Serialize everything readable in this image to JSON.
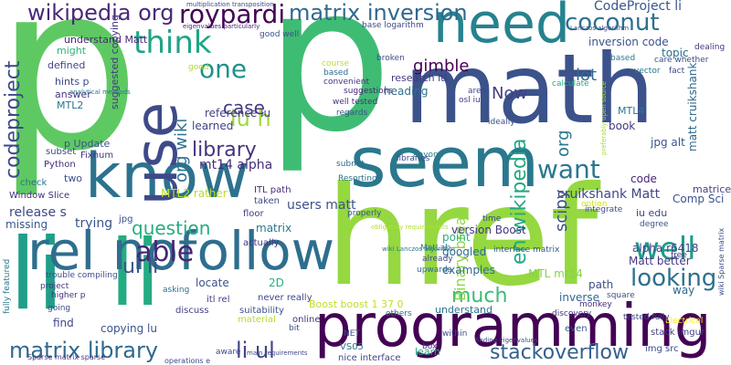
{
  "words": [
    {
      "text": "p",
      "color": "#5ec962"
    },
    {
      "text": "p",
      "color": "#3fbc73"
    },
    {
      "text": "math",
      "color": "#3b528b"
    },
    {
      "text": "href",
      "color": "#95d840"
    },
    {
      "text": "seem",
      "color": "#2a788e"
    },
    {
      "text": "know",
      "color": "#2c728e"
    },
    {
      "text": "need",
      "color": "#26828e"
    },
    {
      "text": "use",
      "color": "#3e4a89"
    },
    {
      "text": "programming",
      "color": "#440154"
    },
    {
      "text": "li",
      "color": "#1f9e89"
    },
    {
      "text": "li",
      "color": "#25ab82"
    },
    {
      "text": "rel nofollow",
      "color": "#2e6e8e"
    },
    {
      "text": "wikipedia org",
      "color": "#482878"
    },
    {
      "text": "roypardi",
      "color": "#440154"
    },
    {
      "text": "matrix inversion",
      "color": "#31688e"
    },
    {
      "text": "coconut",
      "color": "#2d718e"
    },
    {
      "text": "CodeProject li",
      "color": "#39568c"
    },
    {
      "text": "think",
      "color": "#20a486"
    },
    {
      "text": "one",
      "color": "#21918c"
    },
    {
      "text": "want",
      "color": "#2a788e"
    },
    {
      "text": "well",
      "color": "#1e9b8a"
    },
    {
      "text": "lu h",
      "color": "#a0da39"
    },
    {
      "text": "case",
      "color": "#443a83"
    },
    {
      "text": "org wiki",
      "color": "#2c728e"
    },
    {
      "text": "library",
      "color": "#46337e"
    },
    {
      "text": "gimble",
      "color": "#440154"
    },
    {
      "text": "Now",
      "color": "#433e85"
    },
    {
      "text": "en wikipedia",
      "color": "#22a884"
    },
    {
      "text": "org",
      "color": "#2a788e"
    },
    {
      "text": "codeproject",
      "color": "#3e4989"
    },
    {
      "text": "able",
      "color": "#482475"
    },
    {
      "text": "question",
      "color": "#26ad81"
    },
    {
      "text": "ul li",
      "color": "#3b528b"
    },
    {
      "text": "matrix library",
      "color": "#30698e"
    },
    {
      "text": "li ul",
      "color": "#414487"
    },
    {
      "text": "much",
      "color": "#3aba76"
    },
    {
      "text": "looking",
      "color": "#2d708e"
    },
    {
      "text": "stackoverflow",
      "color": "#355f8d"
    },
    {
      "text": "scipy",
      "color": "#3c4f8a"
    },
    {
      "text": "Binary break",
      "color": "#8fd744"
    },
    {
      "text": "lot",
      "color": "#31688e"
    },
    {
      "text": "mt14 alpha",
      "color": "#472c7a"
    },
    {
      "text": "reference lu",
      "color": "#423f85"
    },
    {
      "text": "learned",
      "color": "#414487"
    },
    {
      "text": "MTL2 rather",
      "color": "#b8de29"
    },
    {
      "text": "cruikshank Matt",
      "color": "#3f4788"
    },
    {
      "text": "users matt",
      "color": "#3b528b"
    },
    {
      "text": "version Boost",
      "color": "#453882"
    },
    {
      "text": "googled",
      "color": "#2f6c8e"
    },
    {
      "text": "examples",
      "color": "#2f6b8e"
    },
    {
      "text": "MTL mt14",
      "color": "#84d44b"
    },
    {
      "text": "point",
      "color": "#29af7f"
    },
    {
      "text": "Boost boost 1 37 0",
      "color": "#bddf26"
    },
    {
      "text": "trying",
      "color": "#3a548c"
    },
    {
      "text": "release s",
      "color": "#3e4989"
    },
    {
      "text": "missing",
      "color": "#38588c"
    },
    {
      "text": "matrix",
      "color": "#2a788e"
    },
    {
      "text": "2D",
      "color": "#2ab07f"
    },
    {
      "text": "locate",
      "color": "#3b528b"
    },
    {
      "text": "find",
      "color": "#404688"
    },
    {
      "text": "copying lu",
      "color": "#3a538b"
    },
    {
      "text": "inverse",
      "color": "#31678e"
    },
    {
      "text": "understand",
      "color": "#2c738e"
    },
    {
      "text": "path",
      "color": "#3e4c8a"
    },
    {
      "text": "way",
      "color": "#31688e"
    },
    {
      "text": "Matt better",
      "color": "#453781"
    },
    {
      "text": "alpha r6418",
      "color": "#3f4889"
    },
    {
      "text": "iu edu",
      "color": "#404588"
    },
    {
      "text": "Comp Sci",
      "color": "#3b528b"
    },
    {
      "text": "matrices",
      "color": "#424186"
    },
    {
      "text": "matt cruikshank",
      "color": "#31688e"
    },
    {
      "text": "jpg alt",
      "color": "#3a548c"
    },
    {
      "text": "MTL4",
      "color": "#2a778e"
    },
    {
      "text": "book",
      "color": "#453781"
    },
    {
      "text": "code",
      "color": "#482576"
    },
    {
      "text": "inversion code",
      "color": "#3a548c"
    },
    {
      "text": "topic",
      "color": "#2d708e"
    },
    {
      "text": "heading",
      "color": "#2d708e"
    },
    {
      "text": "research itl",
      "color": "#443983"
    },
    {
      "text": "understand Matt",
      "color": "#482878"
    },
    {
      "text": "hints p",
      "color": "#3e4989"
    },
    {
      "text": "answer",
      "color": "#453882"
    },
    {
      "text": "MTL2",
      "color": "#2c728e"
    },
    {
      "text": "might",
      "color": "#2fb47c"
    },
    {
      "text": "suggested copying",
      "color": "#453882"
    },
    {
      "text": "p Update",
      "color": "#3b518b"
    },
    {
      "text": "defined",
      "color": "#414487"
    },
    {
      "text": "two",
      "color": "#3d4e8a"
    },
    {
      "text": "Window Slice",
      "color": "#46307e"
    },
    {
      "text": "Fixnum",
      "color": "#46337e"
    },
    {
      "text": "subset",
      "color": "#3e4989"
    },
    {
      "text": "Python",
      "color": "#472d7b"
    },
    {
      "text": "check",
      "color": "#2b748e"
    },
    {
      "text": "jpg",
      "color": "#3d4d8a"
    },
    {
      "text": "floor",
      "color": "#443a83"
    },
    {
      "text": "taken",
      "color": "#3e4c8a"
    },
    {
      "text": "ITL path",
      "color": "#472c7a"
    },
    {
      "text": "actually",
      "color": "#46337e"
    },
    {
      "text": "never really",
      "color": "#3e4989"
    },
    {
      "text": "itl rel",
      "color": "#433d84"
    },
    {
      "text": "discuss",
      "color": "#423f85"
    },
    {
      "text": "material",
      "color": "#b5de2b"
    },
    {
      "text": "suitability",
      "color": "#3b528b"
    },
    {
      "text": "online",
      "color": "#46327e"
    },
    {
      "text": "nice interface",
      "color": "#3f4788"
    },
    {
      "text": "VS05",
      "color": "#2d708e"
    },
    {
      "text": "learn",
      "color": "#25ac82"
    },
    {
      "text": "img src",
      "color": "#3e4a89"
    },
    {
      "text": "stack imgur",
      "color": "#423f85"
    },
    {
      "text": "even",
      "color": "#38598c"
    },
    {
      "text": "Electrical",
      "color": "#fde725"
    },
    {
      "text": "upwards",
      "color": "#31688e"
    },
    {
      "text": "already",
      "color": "#3e4c8a"
    },
    {
      "text": "MatLab",
      "color": "#2a788e"
    },
    {
      "text": "properly",
      "color": "#3b528b"
    },
    {
      "text": "subnet",
      "color": "#31688e"
    },
    {
      "text": "Resorting",
      "color": "#2d708e"
    },
    {
      "text": "libraries",
      "color": "#3e4989"
    },
    {
      "text": "anyone",
      "color": "#2a788e"
    },
    {
      "text": "integrate",
      "color": "#3e4a89"
    },
    {
      "text": "interface matrix",
      "color": "#3a548c"
    },
    {
      "text": "suggestions",
      "color": "#482878"
    },
    {
      "text": "well tested",
      "color": "#46327e"
    },
    {
      "text": "regards",
      "color": "#3b528b"
    },
    {
      "text": "convenient",
      "color": "#46337e"
    },
    {
      "text": "based",
      "color": "#2f6b8e"
    },
    {
      "text": "course",
      "color": "#bddf26"
    },
    {
      "text": "broken",
      "color": "#3e4989"
    },
    {
      "text": "base logarithm",
      "color": "#3e4a89"
    },
    {
      "text": "calculate",
      "color": "#25ab82"
    },
    {
      "text": "fact",
      "color": "#3e4989"
    },
    {
      "text": "care whether",
      "color": "#3d4e8a"
    },
    {
      "text": "based",
      "color": "#2a788e"
    },
    {
      "text": "dealing",
      "color": "#46327e"
    },
    {
      "text": "ideally",
      "color": "#3b528b"
    },
    {
      "text": "osl iu",
      "color": "#414487"
    },
    {
      "text": "area",
      "color": "#3e4a89"
    },
    {
      "text": "vector",
      "color": "#2a788e"
    },
    {
      "text": "good",
      "color": "#a8db34"
    },
    {
      "text": "good well",
      "color": "#3b528b"
    },
    {
      "text": "time",
      "color": "#3e4989"
    },
    {
      "text": "degree",
      "color": "#3b528b"
    },
    {
      "text": "option",
      "color": "#cde11d"
    },
    {
      "text": "free",
      "color": "#46327e"
    },
    {
      "text": "square",
      "color": "#3e4c8a"
    },
    {
      "text": "tested fully",
      "color": "#404688"
    },
    {
      "text": "monkey",
      "color": "#472d7b"
    },
    {
      "text": "discovery",
      "color": "#46337e"
    },
    {
      "text": "others",
      "color": "#2d708e"
    },
    {
      "text": "within",
      "color": "#3e4c8a"
    },
    {
      "text": "box",
      "color": "#46327e"
    },
    {
      "text": "NET",
      "color": "#3e4a89"
    },
    {
      "text": "bit",
      "color": "#3e4c8a"
    },
    {
      "text": "asking",
      "color": "#2d708e"
    },
    {
      "text": "going",
      "color": "#3e4989"
    },
    {
      "text": "higher p",
      "color": "#472d7b"
    },
    {
      "text": "project",
      "color": "#46327e"
    },
    {
      "text": "trouble compiling",
      "color": "#3d4e8a"
    },
    {
      "text": "fully featured",
      "color": "#2a788e"
    },
    {
      "text": "aware",
      "color": "#3e4989"
    },
    {
      "text": "operations e",
      "color": "#3e4a89"
    },
    {
      "text": "Sparse matrix sparse",
      "color": "#46327e"
    },
    {
      "text": "multiplication transposition",
      "color": "#3e4989"
    },
    {
      "text": "eigenvalues particularly",
      "color": "#482878"
    },
    {
      "text": "analytical methods",
      "color": "#2a788e"
    },
    {
      "text": "wiki Sparse matrix",
      "color": "#3e4c8a"
    },
    {
      "text": "main requirements",
      "color": "#3e4a89"
    },
    {
      "text": "obligatory requirements",
      "color": "#b5de2b"
    },
    {
      "text": "finding eigenvalues",
      "color": "#3e4989"
    },
    {
      "text": "preferably open source",
      "color": "#a8db34"
    },
    {
      "text": "wiki Lanczos algorithm",
      "color": "#2a788e"
    },
    {
      "text": "Lanczos algorithm",
      "color": "#3e4c8a"
    }
  ]
}
